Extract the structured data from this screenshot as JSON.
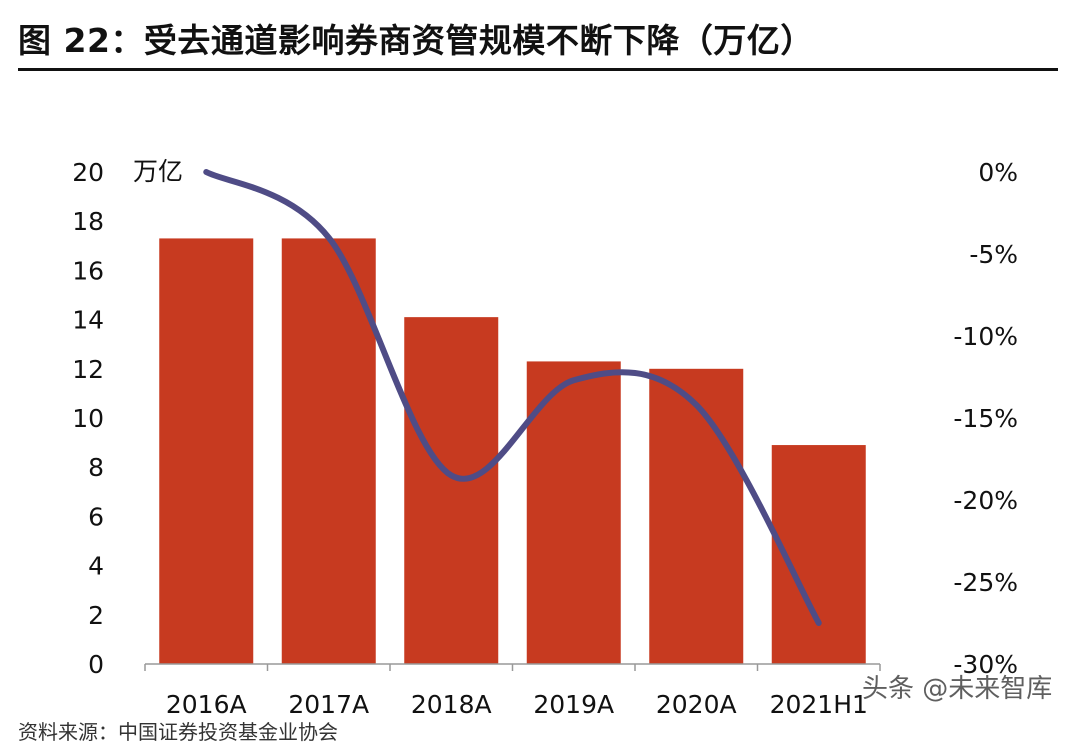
{
  "figure": {
    "title": "图 22：受去通道影响券商资管规模不断下降（万亿）",
    "watermark": "头条 @未来智库",
    "source": "资料来源：中国证券投资基金业协会"
  },
  "colors": {
    "bar": "#C73A20",
    "line": "#4F4C86",
    "axis": "#999999",
    "text": "#111111"
  },
  "chart_data": {
    "type": "bar",
    "categories": [
      "2016A",
      "2017A",
      "2018A",
      "2019A",
      "2020A",
      "2021H1"
    ],
    "series": [
      {
        "type": "bar",
        "axis": "left",
        "values": [
          17.3,
          17.3,
          14.1,
          12.3,
          12.0,
          8.9
        ]
      },
      {
        "type": "line",
        "axis": "right",
        "values": [
          0.0,
          -4.0,
          -18.5,
          -12.7,
          -14.2,
          -27.5
        ]
      }
    ],
    "ylabel": "万亿",
    "ylim": [
      0,
      20
    ],
    "yticks": [
      "0",
      "2",
      "4",
      "6",
      "8",
      "10",
      "12",
      "14",
      "16",
      "18",
      "20"
    ],
    "y2lim": [
      -30,
      0
    ],
    "y2ticks": [
      "0%",
      "-5%",
      "-10%",
      "-15%",
      "-20%",
      "-25%",
      "-30%"
    ],
    "grid": false,
    "legend": "none"
  }
}
